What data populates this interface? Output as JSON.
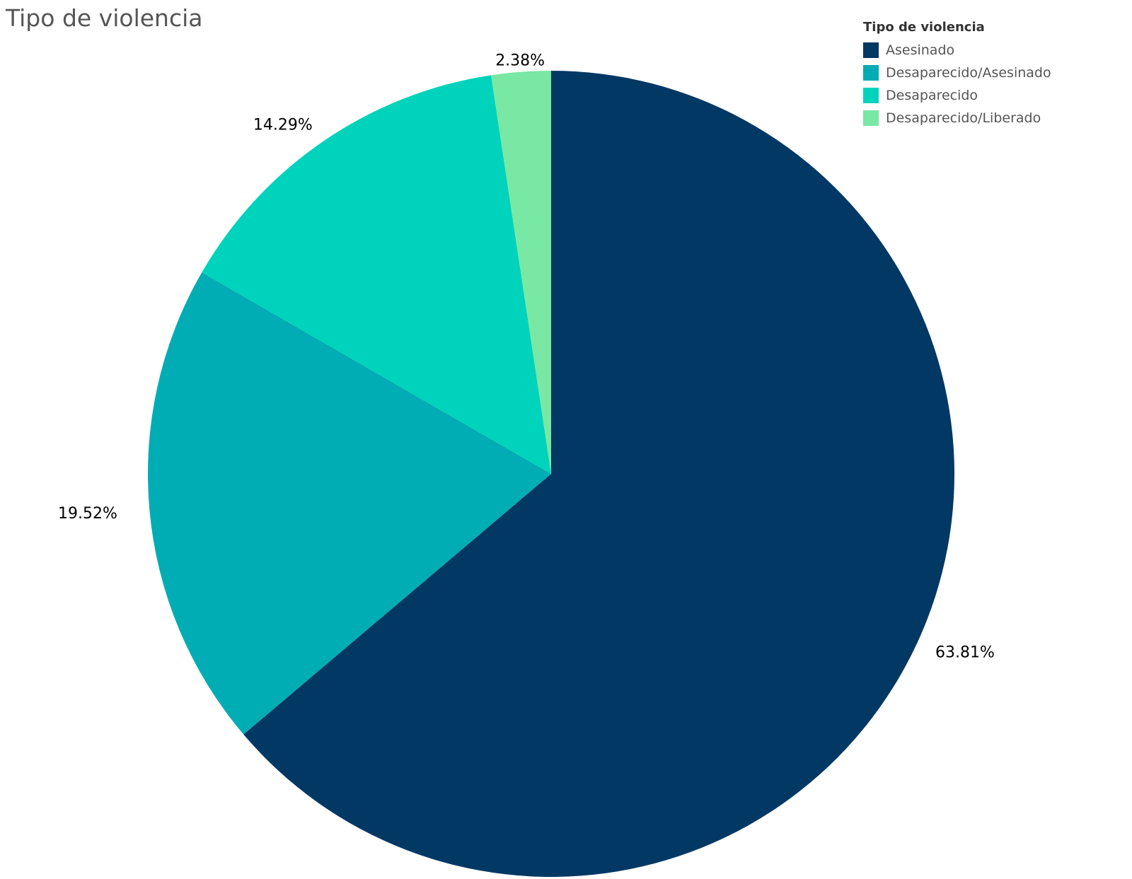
{
  "title": "Tipo de violencia",
  "legend": {
    "title": "Tipo de violencia",
    "items": [
      {
        "label": "Asesinado",
        "color": "#023864"
      },
      {
        "label": "Desaparecido/Asesinado",
        "color": "#00adb4"
      },
      {
        "label": "Desaparecido",
        "color": "#00d3bb"
      },
      {
        "label": "Desaparecido/Liberado",
        "color": "#78e8a4"
      }
    ]
  },
  "chart_data": {
    "type": "pie",
    "title": "Tipo de violencia",
    "legend_position": "top-right",
    "slices": [
      {
        "label": "Asesinado",
        "value": 63.81,
        "display": "63.81%",
        "color": "#023864"
      },
      {
        "label": "Desaparecido/Asesinado",
        "value": 19.52,
        "display": "19.52%",
        "color": "#00adb4"
      },
      {
        "label": "Desaparecido",
        "value": 14.29,
        "display": "14.29%",
        "color": "#00d3bb"
      },
      {
        "label": "Desaparecido/Liberado",
        "value": 2.38,
        "display": "2.38%",
        "color": "#78e8a4"
      }
    ]
  }
}
